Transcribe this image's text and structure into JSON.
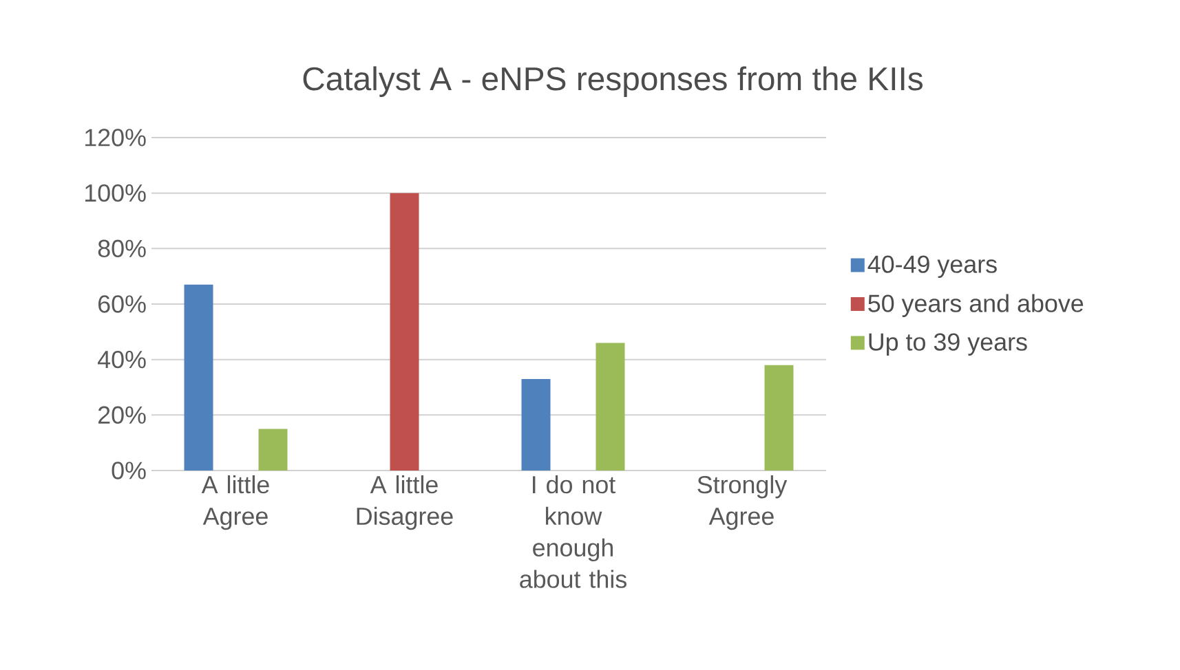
{
  "chart_data": {
    "type": "bar",
    "title": "Catalyst A - eNPS responses from the KIIs",
    "categories": [
      "A little Agree",
      "A little Disagree",
      "I do not know enough about this",
      "Strongly Agree"
    ],
    "series": [
      {
        "name": "40-49 years",
        "color": "#4f81bd",
        "values": [
          67,
          null,
          33,
          null
        ]
      },
      {
        "name": "50 years and above",
        "color": "#c0504d",
        "values": [
          null,
          100,
          null,
          null
        ]
      },
      {
        "name": "Up to 39 years",
        "color": "#9bbb59",
        "values": [
          15,
          null,
          46,
          38
        ]
      }
    ],
    "ylim": [
      0,
      120
    ],
    "yticks": [
      {
        "value": 0,
        "label": "0%"
      },
      {
        "value": 20,
        "label": "20%"
      },
      {
        "value": 40,
        "label": "40%"
      },
      {
        "value": 60,
        "label": "60%"
      },
      {
        "value": 80,
        "label": "80%"
      },
      {
        "value": 100,
        "label": "100%"
      },
      {
        "value": 120,
        "label": "120%"
      }
    ],
    "grid": "y",
    "legend": "right"
  }
}
